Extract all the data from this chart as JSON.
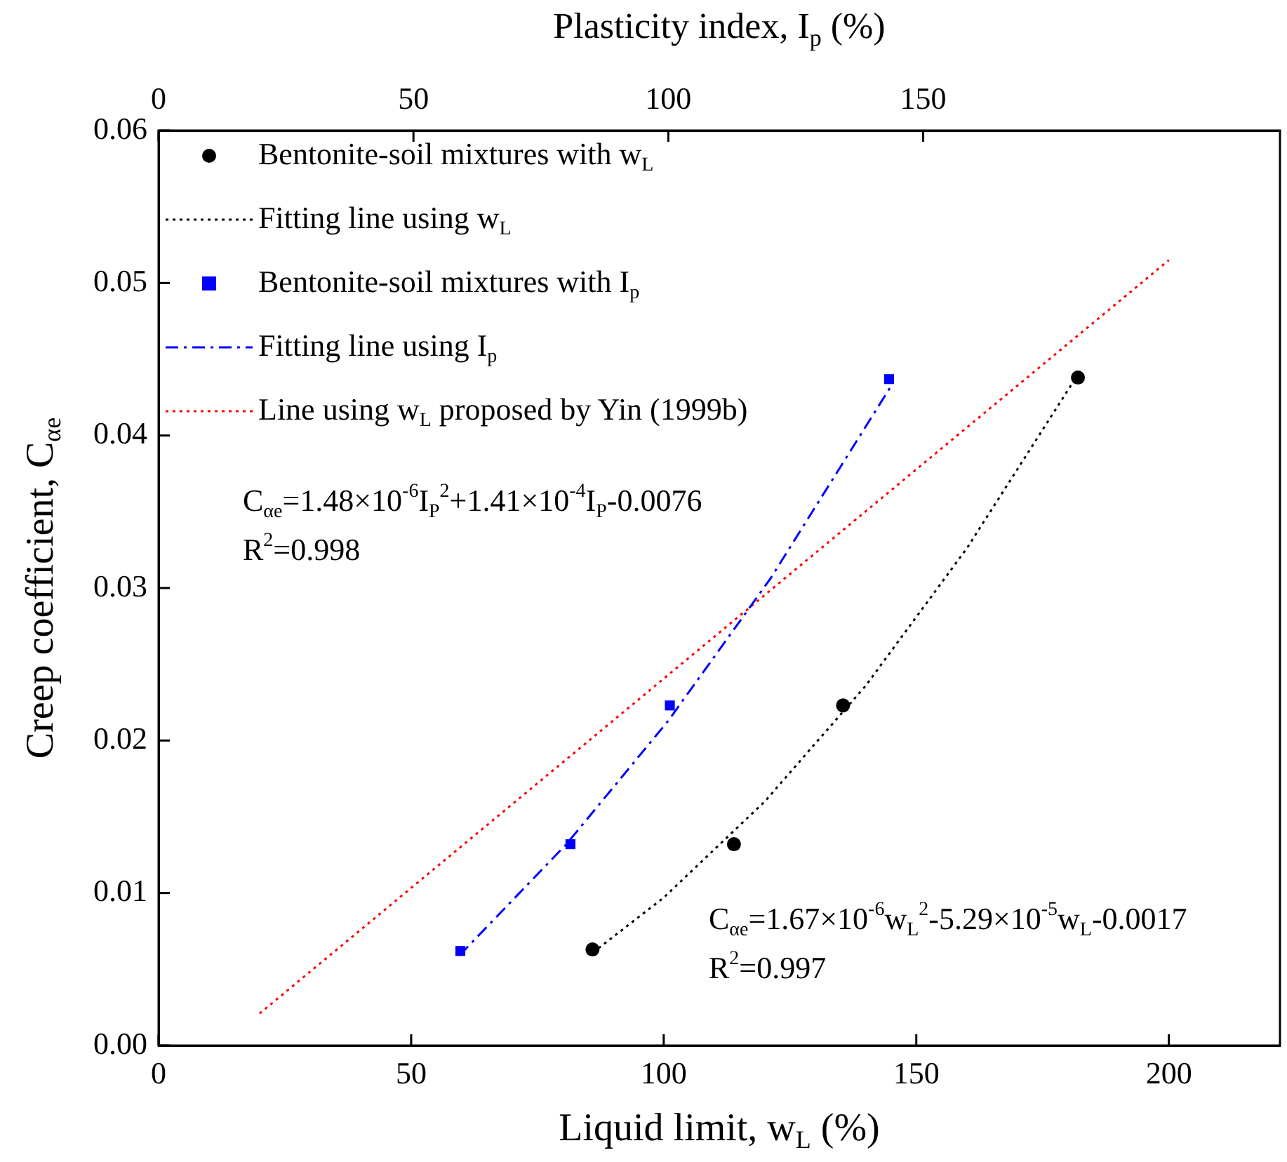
{
  "chart_data": {
    "type": "scatter",
    "xlabel": "Liquid limit, w$_{L}$ (%)",
    "x2label": "Plasticity index, I$_{p}$ (%)",
    "ylabel": "Creep coefficient, C$_{αe}$",
    "xlim": [
      0,
      222
    ],
    "xticks": [
      0,
      50,
      100,
      150,
      200
    ],
    "x2lim": [
      0,
      220
    ],
    "x2ticks": [
      0,
      50,
      100,
      150
    ],
    "ylim": [
      0,
      0.06
    ],
    "yticks": [
      {
        "value": 0,
        "label": "0.00"
      },
      0.01,
      0.02,
      0.03,
      0.04,
      0.05,
      0.06
    ],
    "legend": "top left",
    "series": [
      {
        "name": "Bentonite-soil mixtures with w$_{L}$",
        "type": "scatter",
        "marker": "circle",
        "color": "#000000",
        "x": [
          85.9,
          113.9,
          135.5,
          182
        ],
        "values": [
          0.0063,
          0.0132,
          0.0223,
          0.0438
        ]
      },
      {
        "name": "Fitting line using w$_{L}$",
        "type": "line",
        "marker": "none",
        "line_style": "dotted",
        "color": "#000000",
        "x": [
          86,
          100,
          120,
          140,
          160,
          182
        ],
        "values": [
          0.0061,
          0.0097,
          0.016,
          0.0236,
          0.0326,
          0.044
        ]
      },
      {
        "name": "Bentonite-soil mixtures with I$_{p}$",
        "type": "scatter",
        "marker": "square",
        "axis": "x2",
        "color": "#0000ff",
        "x": [
          59.2,
          80.8,
          100.3,
          143.3
        ],
        "values": [
          0.0062,
          0.0132,
          0.0223,
          0.0437
        ]
      },
      {
        "name": "Fitting line using I$_{p}$",
        "type": "line",
        "marker": "none",
        "line_style": "dashed",
        "axis": "x2",
        "color": "#0000ff",
        "x": [
          59,
          80,
          100,
          120,
          144
        ],
        "values": [
          0.0059,
          0.0132,
          0.0213,
          0.0306,
          0.0434
        ]
      },
      {
        "name": "Line using w$_{L}$ proposed by Yin (1999b)",
        "type": "line",
        "marker": "none",
        "line_style": "dotted",
        "color": "#ff0000",
        "x": [
          20,
          200
        ],
        "values": [
          0.0021,
          0.0515
        ]
      }
    ],
    "annotations": [
      "C$_{αe}$=1.48×10$^{-6}$I$_{P}$$^{2}$+1.41×10$^{-4}$I$_{P}$-0.0076",
      "R$^{2}$=0.998",
      "C$_{αe}$=1.67×10$^{-6}$w$_{L}$$^{2}$-5.29×10$^{-5}$w$_{L}$-0.0017",
      "R$^{2}$=0.997"
    ]
  }
}
